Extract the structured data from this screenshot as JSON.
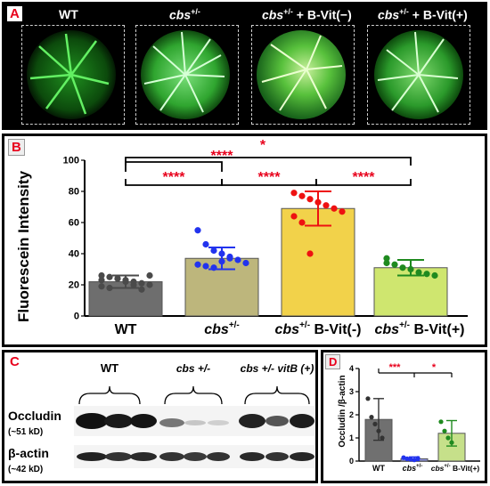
{
  "panel_a": {
    "label": "A",
    "titles": [
      {
        "main": "WT",
        "sup": ""
      },
      {
        "main": "cbs",
        "sup": "+/-"
      },
      {
        "main": "cbs",
        "sup": "+/-",
        "tail": " + B-Vit(−)"
      },
      {
        "main": "cbs",
        "sup": "+/-",
        "tail": " + B-Vit(+)"
      }
    ]
  },
  "panel_b": {
    "label": "B",
    "significance": [
      "****",
      "*",
      "****",
      "****",
      "****"
    ]
  },
  "panel_c": {
    "label": "C",
    "group_labels": [
      "WT",
      "cbs +/-",
      "cbs +/- vitB (+)"
    ],
    "row_labels": [
      {
        "name": "Occludin",
        "size": "(~51 kD)"
      },
      {
        "name": "β-actin",
        "size": "(~42 kD)"
      }
    ]
  },
  "panel_d": {
    "label": "D",
    "significance": [
      "***",
      "*"
    ]
  },
  "chart_data": [
    {
      "type": "bar",
      "panel": "B",
      "categories": [
        "WT",
        "cbs+/-",
        "cbs+/- B-Vit(-)",
        "cbs+/- B-Vit(+)"
      ],
      "values": [
        22,
        37,
        69,
        31
      ],
      "errors": [
        4,
        7,
        11,
        5
      ],
      "ylabel": "Fluorescein Intensity",
      "ylim": [
        0,
        100
      ],
      "yticks": [
        0,
        20,
        40,
        60,
        80,
        100
      ],
      "bar_colors": [
        "#6e6e6e",
        "#bdb67c",
        "#f2d24a",
        "#cfe66f"
      ],
      "point_colors": [
        "#4a4a4a",
        "#2233ee",
        "#ee1111",
        "#1f8a1f"
      ],
      "points": [
        [
          26,
          25,
          24,
          23,
          22,
          21,
          20,
          19,
          18,
          24,
          22,
          20,
          17,
          26,
          23
        ],
        [
          55,
          46,
          42,
          40,
          38,
          36,
          34,
          33,
          32,
          31,
          35,
          37
        ],
        [
          79,
          77,
          75,
          73,
          71,
          69,
          67,
          64,
          60,
          40
        ],
        [
          37,
          33,
          31,
          30,
          28,
          27,
          26,
          34
        ]
      ]
    },
    {
      "type": "bar",
      "panel": "D",
      "categories": [
        "WT",
        "cbs+/-",
        "cbs+/- B-Vit(+)"
      ],
      "values": [
        1.8,
        0.1,
        1.2
      ],
      "errors": [
        0.9,
        0.08,
        0.55
      ],
      "ylabel": "Occludin /β-actin",
      "ylim": [
        0,
        4
      ],
      "yticks": [
        0,
        1,
        2,
        3,
        4
      ],
      "bar_colors": [
        "#707070",
        "#8a8fe0",
        "#c6e08a"
      ],
      "point_colors": [
        "#333333",
        "#2233ee",
        "#1f8a1f"
      ],
      "points": [
        [
          2.7,
          1.9,
          1.6,
          1.3,
          1.0
        ],
        [
          0.15,
          0.1,
          0.08,
          0.05,
          0.12
        ],
        [
          1.7,
          1.3,
          1.0,
          0.8
        ]
      ]
    }
  ]
}
